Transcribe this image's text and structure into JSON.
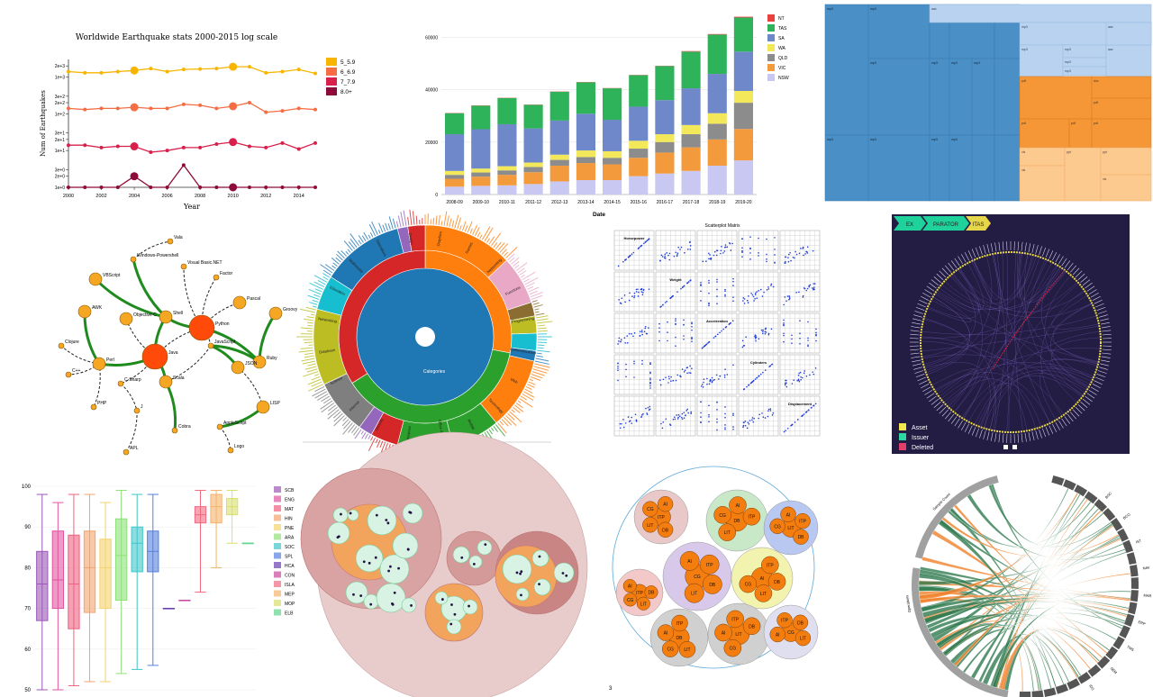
{
  "colors": {
    "eq": [
      "#f7b500",
      "#f46d43",
      "#d7204b",
      "#8e0a3a"
    ],
    "bar": {
      "NT": "#e8413e",
      "TAS": "#2eb35a",
      "SA": "#6f88c9",
      "WA": "#f2e85a",
      "QLD": "#8c8c8c",
      "VIC": "#f39a3d",
      "NSW": "#c8c8f2"
    },
    "treemap": [
      "#4a8fc6",
      "#b9d2ef",
      "#f59637",
      "#fcc98e"
    ],
    "network_node": "#f5a623",
    "network_hub": "#ff4a0a",
    "network_edge": "#1f8b1f",
    "sunburst_center": "#1f77b4",
    "scatter_point": "#1f3bd6",
    "edge_bundle_bg": "#231c43",
    "chord_green": "#2f7a4f",
    "chord_orange": "#f07f28"
  },
  "earthquake": {
    "chart_data": {
      "type": "line",
      "title": "Worldwide Earthquake stats 2000-2015 log scale",
      "xlabel": "Year",
      "ylabel": "Num of Earthquakes",
      "x": [
        2000,
        2001,
        2002,
        2003,
        2004,
        2005,
        2006,
        2007,
        2008,
        2009,
        2010,
        2011,
        2012,
        2013,
        2014,
        2015
      ],
      "xticks": [
        "2000",
        "2002",
        "2004",
        "2006",
        "2008",
        "2010",
        "2012",
        "2014"
      ],
      "yticks": [
        "1e+0",
        "2e+0",
        "3e+0",
        "1e+1",
        "2e+1",
        "3e+1",
        "1e+2",
        "2e+2",
        "3e+2",
        "1e+3",
        "2e+3"
      ],
      "ylim": [
        1,
        3000
      ],
      "scale": "log",
      "legend_position": "right",
      "series": [
        {
          "name": "5_5.9",
          "values": [
            1400,
            1300,
            1300,
            1400,
            1500,
            1700,
            1400,
            1600,
            1650,
            1700,
            1900,
            1900,
            1300,
            1400,
            1600,
            1250
          ]
        },
        {
          "name": "6_6.9",
          "values": [
            140,
            130,
            140,
            140,
            150,
            140,
            140,
            180,
            170,
            140,
            160,
            200,
            110,
            120,
            140,
            130
          ]
        },
        {
          "name": "7_7.9",
          "values": [
            14,
            14,
            12,
            13,
            13,
            9,
            10,
            12,
            12,
            15,
            17,
            13,
            12,
            16,
            11,
            16
          ]
        },
        {
          "name": "8.0+",
          "values": [
            1,
            1,
            1,
            1,
            2,
            1,
            1,
            4,
            1,
            1,
            1,
            1,
            1,
            1,
            1,
            1
          ]
        }
      ]
    }
  },
  "stacked": {
    "chart_data": {
      "type": "bar",
      "xlabel": "Date",
      "categories": [
        "2008-09",
        "2009-10",
        "2010-11",
        "2011-12",
        "2012-13",
        "2013-14",
        "2014-15",
        "2015-16",
        "2016-17",
        "2017-18",
        "2018-19",
        "2019-20"
      ],
      "yticks": [
        "0",
        "20000",
        "40000",
        "60000"
      ],
      "ylim": [
        0,
        68000
      ],
      "legend_position": "top-right",
      "series": [
        {
          "name": "NT",
          "values": [
            100,
            100,
            100,
            100,
            100,
            100,
            100,
            100,
            100,
            200,
            200,
            300
          ]
        },
        {
          "name": "TAS",
          "values": [
            8000,
            9000,
            10000,
            9000,
            11000,
            12000,
            12000,
            12000,
            13000,
            14000,
            15000,
            13000
          ]
        },
        {
          "name": "SA",
          "values": [
            14000,
            15000,
            16000,
            13000,
            13000,
            14000,
            12000,
            13000,
            13000,
            14000,
            15000,
            15000
          ]
        },
        {
          "name": "WA",
          "values": [
            1500,
            1500,
            1600,
            1700,
            2000,
            2500,
            2500,
            3000,
            3000,
            3500,
            4000,
            4500
          ]
        },
        {
          "name": "QLD",
          "values": [
            1500,
            1600,
            1700,
            2000,
            2200,
            2300,
            2500,
            3500,
            4000,
            5000,
            6000,
            10000
          ]
        },
        {
          "name": "VIC",
          "values": [
            3000,
            3500,
            4000,
            4500,
            6000,
            6500,
            6000,
            7000,
            8000,
            9000,
            10000,
            12000
          ]
        },
        {
          "name": "NSW",
          "values": [
            3000,
            3300,
            3500,
            4000,
            5000,
            5500,
            5500,
            7000,
            8000,
            9000,
            11000,
            13000
          ]
        }
      ]
    }
  },
  "treemap": {
    "labels_blue": [
      "mp3",
      "mp3",
      "mp3",
      "mp3",
      "mp3",
      "mp3",
      "mp3",
      "mp3",
      "mp3",
      "mp3",
      "mp3",
      "mp3"
    ],
    "labels_light": [
      "aac",
      "mp3",
      "mp3",
      "mp3",
      "mp3",
      "mp3",
      "aac",
      "mp3",
      "mp3",
      "aac"
    ],
    "labels_orange": [
      "pdf",
      "doc",
      "pdf",
      "pdf",
      "pdf",
      "pdf",
      "doc",
      "pdf",
      "doc"
    ],
    "labels_peach": [
      "xls",
      "xls",
      "ppt",
      "ppt",
      "xls",
      "txt",
      "xls"
    ]
  },
  "network": {
    "nodes": [
      "Vala",
      "Windows-Powershell",
      "VBScript",
      "Visual Basic.NET",
      "Factor",
      "Pascal",
      "Groovy",
      "AWK",
      "Objective C",
      "Clojure",
      "C++",
      "PHP",
      "C-Sharp",
      "Scala",
      "Cobra",
      "Ruby",
      "JSON",
      "LISP",
      "AppleScript",
      "Logo",
      "APL",
      "Java",
      "Python",
      "JavaScript",
      "Shell",
      "Perl",
      "J"
    ]
  },
  "sunburst": {
    "center_label": "Categories",
    "labels": [
      "Graphics",
      "Games",
      "Networking",
      "Functions",
      "Programming",
      "Communication",
      "Web",
      "Technology",
      "Mobile",
      "Office Automation",
      "Enterprise",
      "Security",
      "Internet",
      "Science",
      "Database",
      "Networking",
      "Education",
      "Multimedia",
      "Operations",
      "Design"
    ]
  },
  "splom": {
    "title": "Scatterplot Matrix",
    "variables": [
      "Displacement",
      "Cylinders",
      "Acceleration",
      "Weight",
      "Horsepower"
    ]
  },
  "edge_bundle": {
    "breadcrumb": [
      "EX",
      "PARATOR",
      "ITAS"
    ],
    "legend": [
      {
        "label": "Asset",
        "color": "#f2e84e"
      },
      {
        "label": "Issuer",
        "color": "#2ed6a0"
      },
      {
        "label": "Deleted",
        "color": "#e2406b"
      }
    ]
  },
  "boxplot": {
    "chart_data": {
      "type": "box",
      "yticks": [
        "50",
        "60",
        "70",
        "80",
        "90",
        "100"
      ],
      "ylim": [
        50,
        100
      ],
      "legend_position": "right",
      "series": [
        {
          "name": "SCB",
          "color": "#9b59b6",
          "min": 50,
          "q1": 67,
          "median": 76,
          "q3": 84,
          "max": 98
        },
        {
          "name": "ENG",
          "color": "#e056a0",
          "min": 50,
          "q1": 70,
          "median": 77,
          "q3": 89,
          "max": 96
        },
        {
          "name": "MAT",
          "color": "#f06080",
          "min": 51,
          "q1": 65,
          "median": 76,
          "q3": 88,
          "max": 98
        },
        {
          "name": "HIN",
          "color": "#f5a36b",
          "min": 52,
          "q1": 69,
          "median": 80,
          "q3": 89,
          "max": 98
        },
        {
          "name": "PNE",
          "color": "#f3d36b",
          "min": 52,
          "q1": 70,
          "median": 80,
          "q3": 87,
          "max": 96
        },
        {
          "name": "ARA",
          "color": "#8ee07a",
          "min": 54,
          "q1": 72,
          "median": 83,
          "q3": 92,
          "max": 99
        },
        {
          "name": "SOC",
          "color": "#41c6c9",
          "min": 55,
          "q1": 79,
          "median": 86,
          "q3": 90,
          "max": 98
        },
        {
          "name": "SPL",
          "color": "#5580e0",
          "min": 56,
          "q1": 79,
          "median": 84,
          "q3": 89,
          "max": 98
        },
        {
          "name": "HCA",
          "color": "#6a3fb5",
          "min": 70,
          "q1": 70,
          "median": 70,
          "q3": 70,
          "max": 70
        },
        {
          "name": "CON",
          "color": "#c94aa0",
          "min": 72,
          "q1": 72,
          "median": 72,
          "q3": 72,
          "max": 72
        },
        {
          "name": "ISLA",
          "color": "#f06a80",
          "min": 74,
          "q1": 91,
          "median": 93,
          "q3": 95,
          "max": 99
        },
        {
          "name": "MEP",
          "color": "#f5b36b",
          "min": 80,
          "q1": 91,
          "median": 95,
          "q3": 98,
          "max": 99
        },
        {
          "name": "MOP",
          "color": "#d8e06b",
          "min": 86,
          "q1": 93,
          "median": 95,
          "q3": 97,
          "max": 99
        },
        {
          "name": "ELB",
          "color": "#5fd68f",
          "min": 86,
          "q1": 86,
          "median": 86,
          "q3": 86,
          "max": 86
        }
      ]
    }
  },
  "circlepack2": {
    "labels": [
      "ITP",
      "DB",
      "LIT",
      "CG",
      "AI"
    ],
    "page_number": "3"
  },
  "chord": {
    "labels_left": [
      "Sample Count",
      "Operations"
    ],
    "labels_right": [
      "BSC",
      "BCO",
      "IST",
      "NAV",
      "MAR",
      "ERP",
      "TMS",
      "SEM",
      "IDS"
    ]
  }
}
